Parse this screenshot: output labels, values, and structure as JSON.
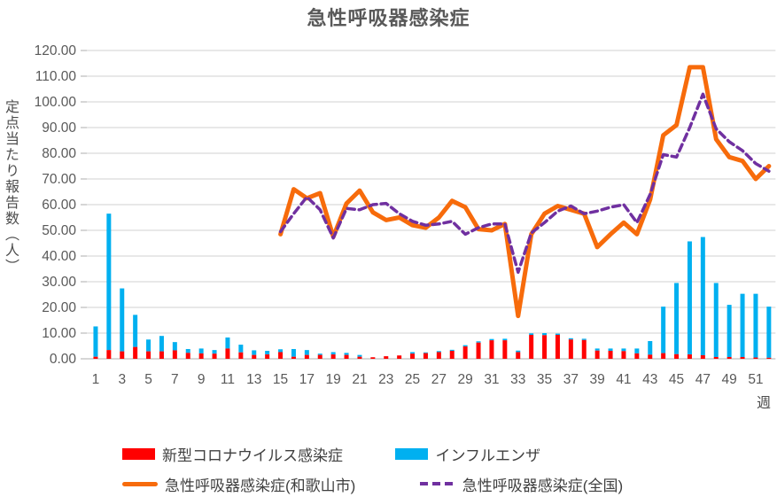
{
  "title": "急性呼吸器感染症",
  "y_axis": {
    "label": "定点当たり報告数（人）",
    "min": 0,
    "max": 120,
    "step": 10,
    "decimals": 2
  },
  "x_axis": {
    "label": "週",
    "first_tick": 1,
    "last_tick": 51,
    "tick_step": 2,
    "num_weeks": 52
  },
  "colors": {
    "covid_red": "#FF0000",
    "influenza_blue": "#00B0F0",
    "wakayama_orange": "#F76B0B",
    "national_purple": "#7030A0",
    "gridline": "#D9D9D9",
    "baseline": "#BFBFBF",
    "axis_text": "#595959",
    "title_text": "#595959"
  },
  "legend": [
    {
      "key": "covid",
      "label": "新型コロナウイルス感染症",
      "swatch": "bar",
      "color": "#FF0000"
    },
    {
      "key": "influenza",
      "label": "インフルエンザ",
      "swatch": "bar",
      "color": "#00B0F0"
    },
    {
      "key": "wakayama",
      "label": "急性呼吸器感染症(和歌山市)",
      "swatch": "line",
      "color": "#F76B0B"
    },
    {
      "key": "national",
      "label": "急性呼吸器感染症(全国)",
      "swatch": "dashed-line",
      "color": "#7030A0"
    }
  ],
  "chart_data": {
    "type": "combo (stacked bars + lines)",
    "title": "急性呼吸器感染症",
    "xlabel": "週",
    "ylabel": "定点当たり報告数（人）",
    "ylim": [
      0,
      120
    ],
    "grid": true,
    "legend_position": "bottom",
    "x": [
      1,
      2,
      3,
      4,
      5,
      6,
      7,
      8,
      9,
      10,
      11,
      12,
      13,
      14,
      15,
      16,
      17,
      18,
      19,
      20,
      21,
      22,
      23,
      24,
      25,
      26,
      27,
      28,
      29,
      30,
      31,
      32,
      33,
      34,
      35,
      36,
      37,
      38,
      39,
      40,
      41,
      42,
      43,
      44,
      45,
      46,
      47,
      48,
      49,
      50,
      51,
      52
    ],
    "series": [
      {
        "name": "新型コロナウイルス感染症",
        "type": "bar",
        "stack": "bottom",
        "color": "#FF0000",
        "values": [
          0.8,
          3.4,
          2.9,
          4.6,
          2.9,
          2.9,
          3.3,
          2.3,
          2.1,
          2.0,
          4.0,
          2.5,
          1.5,
          1.7,
          2.6,
          0.8,
          1.5,
          1.5,
          1.7,
          1.5,
          0.8,
          0.6,
          1.0,
          1.3,
          2.0,
          2.2,
          2.6,
          3.1,
          4.8,
          6.3,
          7.2,
          7.2,
          2.6,
          9.3,
          9.2,
          9.3,
          7.5,
          7.3,
          3.2,
          3.1,
          3.0,
          2.1,
          1.6,
          2.2,
          1.8,
          1.7,
          1.4,
          0.7,
          0.7,
          0.7,
          0.5,
          0.4
        ]
      },
      {
        "name": "インフルエンザ",
        "type": "bar",
        "stack": "top",
        "color": "#00B0F0",
        "values": [
          11.8,
          53.1,
          24.5,
          12.5,
          4.6,
          6.0,
          3.2,
          1.5,
          1.9,
          1.4,
          4.3,
          3.0,
          1.8,
          1.4,
          1.1,
          3.0,
          1.9,
          0.5,
          0.9,
          0.8,
          0.7,
          0,
          0,
          0,
          0.6,
          0.3,
          0.4,
          0.4,
          0.5,
          0.5,
          0.5,
          0.6,
          0.6,
          0.6,
          0.8,
          0.5,
          0.5,
          0.5,
          0.8,
          0.9,
          1.0,
          1.9,
          5.3,
          18.1,
          27.7,
          44.0,
          46.0,
          28.8,
          20.3,
          24.6,
          24.8,
          19.9
        ]
      },
      {
        "name": "急性呼吸器感染症(和歌山市)",
        "type": "line",
        "dashed": false,
        "color": "#F76B0B",
        "values": [
          null,
          null,
          null,
          null,
          null,
          null,
          null,
          null,
          null,
          null,
          null,
          null,
          null,
          null,
          48.5,
          66.0,
          62.5,
          64.5,
          47.5,
          60.5,
          65.5,
          57.0,
          54.0,
          55.0,
          52.0,
          51.0,
          55.0,
          61.5,
          59.0,
          50.5,
          50.0,
          52.5,
          16.7,
          48.5,
          56.5,
          59.5,
          58.0,
          56.5,
          43.5,
          48.5,
          53.0,
          48.5,
          62.0,
          87.0,
          91.0,
          113.5,
          113.5,
          85.5,
          78.5,
          77.0,
          70.0,
          75.0
        ]
      },
      {
        "name": "急性呼吸器感染症(全国)",
        "type": "line",
        "dashed": true,
        "color": "#7030A0",
        "values": [
          null,
          null,
          null,
          null,
          null,
          null,
          null,
          null,
          null,
          null,
          null,
          null,
          null,
          null,
          49.5,
          56.5,
          63.0,
          58.0,
          47.0,
          58.5,
          58.0,
          60.0,
          60.5,
          56.5,
          53.5,
          52.0,
          52.5,
          53.5,
          48.5,
          51.0,
          52.5,
          52.5,
          33.7,
          49.0,
          53.0,
          57.5,
          59.5,
          56.5,
          57.5,
          59.0,
          60.0,
          53.0,
          64.0,
          79.5,
          78.5,
          90.0,
          103.0,
          89.5,
          84.5,
          81.0,
          76.0,
          73.0
        ]
      }
    ]
  }
}
